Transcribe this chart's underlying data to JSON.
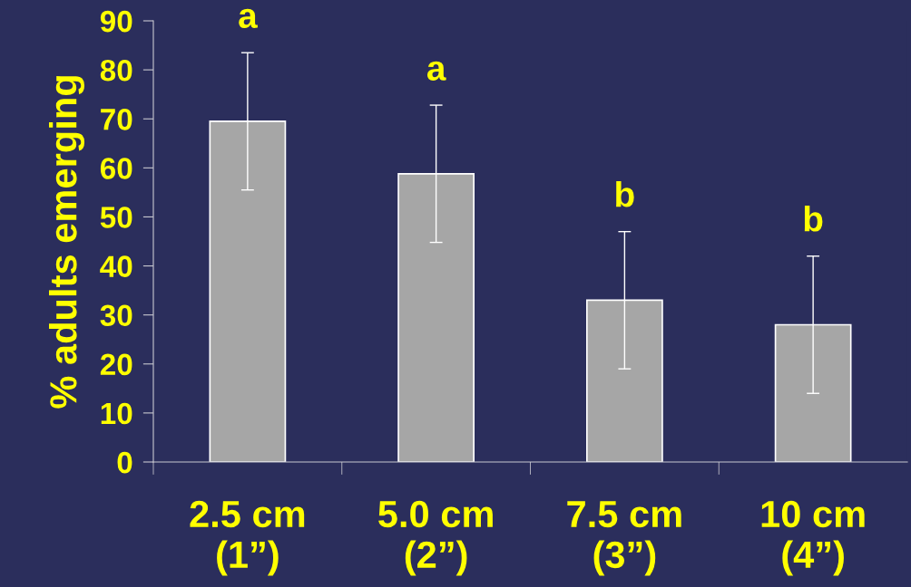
{
  "chart_data": {
    "type": "bar",
    "ylabel": "% adults emerging",
    "categories": [
      "2.5 cm\n(1”)",
      "5.0 cm\n(2”)",
      "7.5 cm\n(3”)",
      "10 cm\n(4”)"
    ],
    "values": [
      69.5,
      58.8,
      33,
      28
    ],
    "color": "#a6a6a6",
    "errors": [
      14,
      14,
      14,
      14
    ],
    "ylim": [
      0,
      90
    ],
    "yticks": [
      0,
      10,
      20,
      30,
      40,
      50,
      60,
      70,
      80,
      90
    ],
    "grid": false,
    "annotations": [
      {
        "text": "a",
        "x": "2.5 cm\n(1”)",
        "y": 83.5
      },
      {
        "text": "a",
        "x": "5.0 cm\n(2”)",
        "y": 72.8
      },
      {
        "text": "b",
        "x": "7.5 cm\n(3”)",
        "y": 47
      },
      {
        "text": "b",
        "x": "10 cm\n(4”)",
        "y": 42
      }
    ]
  }
}
